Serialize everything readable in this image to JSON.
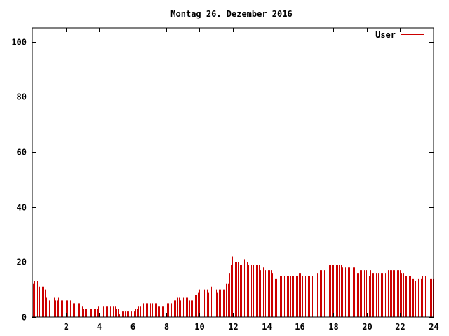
{
  "chart_data": {
    "type": "bar",
    "title": "Montag 26. Dezember 2016",
    "xlabel": "",
    "ylabel": "",
    "xlim": [
      0,
      24
    ],
    "ylim": [
      0,
      105
    ],
    "x_ticks": [
      2,
      4,
      6,
      8,
      10,
      12,
      14,
      16,
      18,
      20,
      22,
      24
    ],
    "y_ticks": [
      0,
      20,
      40,
      60,
      80,
      100
    ],
    "grid": false,
    "legend_position": "top-right",
    "bar_color": "#cc0000",
    "series": [
      {
        "name": "User",
        "values": [
          12,
          13,
          13,
          13,
          11,
          11,
          11,
          11,
          10,
          7,
          6,
          6,
          7,
          8,
          7,
          6,
          6,
          7,
          7,
          6,
          6,
          6,
          6,
          6,
          6,
          6,
          6,
          5,
          5,
          5,
          5,
          5,
          4,
          4,
          3,
          3,
          3,
          3,
          3,
          3,
          4,
          3,
          3,
          3,
          4,
          4,
          4,
          4,
          4,
          4,
          4,
          4,
          4,
          4,
          4,
          4,
          3,
          3,
          1,
          2,
          2,
          2,
          2,
          2,
          2,
          2,
          2,
          2,
          2,
          3,
          3,
          4,
          4,
          4,
          5,
          5,
          5,
          5,
          5,
          5,
          5,
          5,
          5,
          5,
          4,
          4,
          4,
          4,
          4,
          5,
          5,
          5,
          5,
          5,
          5,
          6,
          6,
          7,
          7,
          6,
          7,
          7,
          7,
          7,
          7,
          6,
          6,
          6,
          7,
          8,
          8,
          9,
          10,
          10,
          11,
          10,
          10,
          10,
          9,
          11,
          11,
          10,
          10,
          10,
          9,
          10,
          10,
          9,
          10,
          10,
          12,
          12,
          16,
          19,
          22,
          21,
          20,
          20,
          20,
          19,
          19,
          21,
          21,
          21,
          20,
          19,
          19,
          19,
          19,
          19,
          19,
          19,
          19,
          17,
          18,
          18,
          17,
          17,
          17,
          17,
          17,
          16,
          15,
          14,
          14,
          14,
          15,
          15,
          15,
          15,
          15,
          15,
          15,
          15,
          15,
          15,
          14,
          15,
          15,
          16,
          16,
          15,
          15,
          15,
          15,
          15,
          15,
          15,
          15,
          15,
          16,
          16,
          16,
          17,
          17,
          17,
          17,
          17,
          19,
          19,
          19,
          19,
          19,
          19,
          19,
          19,
          19,
          19,
          18,
          18,
          18,
          18,
          18,
          18,
          18,
          18,
          18,
          18,
          16,
          16,
          17,
          17,
          16,
          17,
          17,
          15,
          15,
          17,
          16,
          16,
          15,
          16,
          16,
          16,
          16,
          16,
          17,
          16,
          17,
          17,
          17,
          17,
          17,
          17,
          17,
          17,
          17,
          17,
          16,
          16,
          15,
          15,
          15,
          15,
          15,
          14,
          14,
          13,
          14,
          14,
          14,
          14,
          15,
          15,
          15,
          14,
          14,
          14,
          14,
          14
        ]
      }
    ]
  }
}
